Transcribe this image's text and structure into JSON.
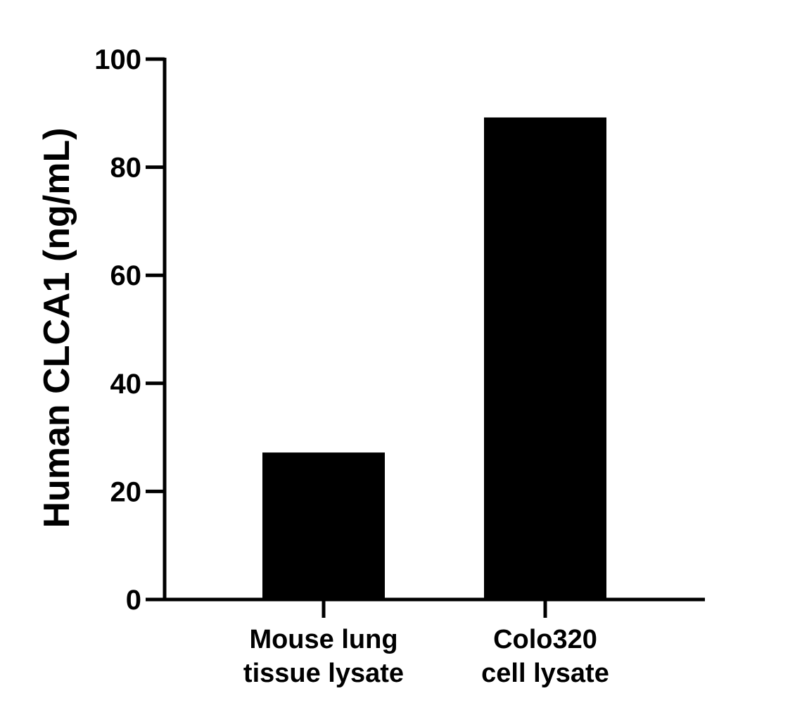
{
  "chart_data": {
    "type": "bar",
    "categories": [
      [
        "Mouse lung",
        "tissue lysate"
      ],
      [
        "Colo320",
        "cell lysate"
      ]
    ],
    "values": [
      27.2,
      89.2
    ],
    "title": "",
    "xlabel": "",
    "ylabel": "Human CLCA1 (ng/mL)",
    "ylim": [
      0,
      100
    ],
    "yticks": [
      "0",
      "20",
      "40",
      "60",
      "80",
      "100"
    ],
    "grid": false,
    "bar_color": "#000000"
  }
}
